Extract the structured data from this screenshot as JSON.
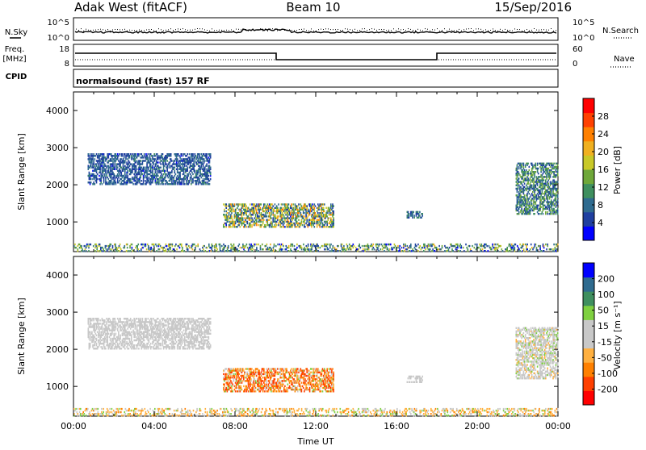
{
  "header": {
    "station": "Adak West (fitACF)",
    "beam": "Beam 10",
    "date": "15/Sep/2016"
  },
  "panels": {
    "nsky": {
      "left_label": "N.Sky",
      "right_label": "N.Search",
      "left_ticks": [
        "10^5",
        "10^0"
      ],
      "right_ticks": [
        "10^5",
        "10^0"
      ]
    },
    "freq": {
      "left_label_top": "Freq.",
      "left_label_bottom": "[MHz]",
      "right_label": "Nave",
      "left_ticks": [
        "18",
        "8"
      ],
      "right_ticks": [
        "60",
        "0"
      ]
    },
    "cpid": {
      "label": "CPID",
      "text": "normalsound (fast) 157 RF"
    }
  },
  "colors": {
    "power": [
      "#0000ff",
      "#1f3fa0",
      "#2f6b8f",
      "#3f8f5f",
      "#6fa83a",
      "#c8c828",
      "#f0b020",
      "#ff8000",
      "#ff4000",
      "#ff0000"
    ],
    "velocity": [
      "#ff0000",
      "#ff4000",
      "#ff8000",
      "#ffb040",
      "#c8c8c8",
      "#c8c8c8",
      "#7fd040",
      "#3f8f5f",
      "#2f6b8f",
      "#0000ff"
    ]
  },
  "chart_data": [
    {
      "type": "heatmap",
      "name": "power",
      "ylabel": "Slant Range [km]",
      "yticks": [
        "1000",
        "2000",
        "3000",
        "4000"
      ],
      "ylim": [
        200,
        4500
      ],
      "xlim": [
        0,
        24
      ],
      "colorbar_label": "Power [dB]",
      "colorbar_ticks": [
        "4",
        "8",
        "12",
        "16",
        "20",
        "24",
        "28"
      ],
      "colorbar_range": [
        0,
        32
      ],
      "regions": [
        {
          "t0": 0.7,
          "t1": 6.8,
          "r0": 2000,
          "r1": 2850,
          "level": [
            3,
            10
          ]
        },
        {
          "t0": 7.4,
          "t1": 12.9,
          "r0": 850,
          "r1": 1500,
          "level": [
            3,
            24
          ]
        },
        {
          "t0": 16.5,
          "t1": 17.3,
          "r0": 1100,
          "r1": 1300,
          "level": [
            4,
            12
          ]
        },
        {
          "t0": 21.9,
          "t1": 24,
          "r0": 1200,
          "r1": 2600,
          "level": [
            4,
            16
          ]
        },
        {
          "t0": 0,
          "t1": 24,
          "r0": 200,
          "r1": 420,
          "level": [
            2,
            20
          ]
        }
      ]
    },
    {
      "type": "heatmap",
      "name": "velocity",
      "ylabel": "Slant Range [km]",
      "yticks": [
        "1000",
        "2000",
        "3000",
        "4000"
      ],
      "ylim": [
        200,
        4500
      ],
      "xlim": [
        0,
        24
      ],
      "xticks": [
        "00:00",
        "04:00",
        "08:00",
        "12:00",
        "16:00",
        "20:00",
        "00:00"
      ],
      "xlabel": "Time UT",
      "colorbar_label": "Velocity [m s⁻¹]",
      "colorbar_ticks": [
        "-200",
        "-100",
        "-50",
        "-15",
        "15",
        "50",
        "100",
        "200"
      ],
      "regions": [
        {
          "t0": 0.7,
          "t1": 6.8,
          "r0": 2000,
          "r1": 2850,
          "vel": [
            -10,
            10
          ]
        },
        {
          "t0": 7.4,
          "t1": 12.9,
          "r0": 850,
          "r1": 1500,
          "vel": [
            -160,
            30
          ]
        },
        {
          "t0": 16.5,
          "t1": 17.3,
          "r0": 1100,
          "r1": 1300,
          "vel": [
            -10,
            10
          ]
        },
        {
          "t0": 21.9,
          "t1": 24,
          "r0": 1200,
          "r1": 2600,
          "vel": [
            -20,
            20
          ]
        },
        {
          "t0": 0,
          "t1": 24,
          "r0": 200,
          "r1": 420,
          "vel": [
            -60,
            30
          ]
        }
      ]
    }
  ]
}
